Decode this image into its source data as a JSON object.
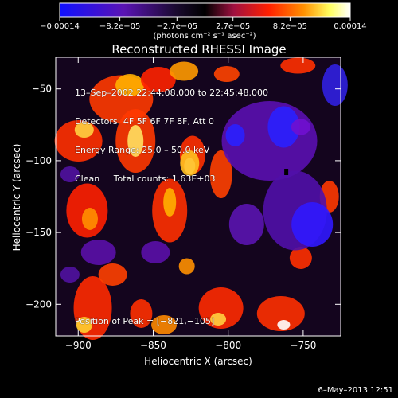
{
  "chart_data": {
    "type": "heatmap",
    "title": "Reconstructed RHESSI Image",
    "xlabel": "Heliocentric X (arcsec)",
    "ylabel": "Heliocentric Y (arcsec)",
    "xlim": [
      -915,
      -725
    ],
    "ylim": [
      -222,
      -28
    ],
    "x_ticks": [
      -900,
      -850,
      -800,
      -750
    ],
    "y_ticks": [
      -50,
      -100,
      -150,
      -200
    ],
    "x_tick_labels": [
      "−900",
      "−850",
      "−800",
      "−750"
    ],
    "y_tick_labels": [
      "−50",
      "−100",
      "−150",
      "−200"
    ],
    "colorbar": {
      "min": -0.00014,
      "max": 0.00014,
      "tick_values": [
        -0.00014,
        -8.2e-05,
        -2.7e-05,
        2.7e-05,
        8.2e-05,
        0.00014
      ],
      "tick_labels": [
        "−0.00014",
        "−8.2e−05",
        "−2.7e−05",
        "2.7e−05",
        "8.2e−05",
        "0.00014"
      ],
      "unit_label": "(photons cm⁻² s⁻¹ asec⁻²)",
      "colors": [
        "#0000ff",
        "#5a0aa0",
        "#000000",
        "#a00050",
        "#ff2000",
        "#ff9000",
        "#ffff80",
        "#ffffff"
      ]
    },
    "annotations": [
      "13–Sep–2002 22:44:08.000 to 22:45:48.000",
      "Detectors: 4F 5F 6F 7F 8F, Att 0",
      "Energy Range: 25.0 – 50.0 keV",
      "Clean     Total counts: 1.63E+03"
    ],
    "peak_label": "Position of Peak = [−821,−105]",
    "peak": [
      -821,
      -105
    ]
  },
  "footer": {
    "date": "6–May–2013 12:51"
  }
}
